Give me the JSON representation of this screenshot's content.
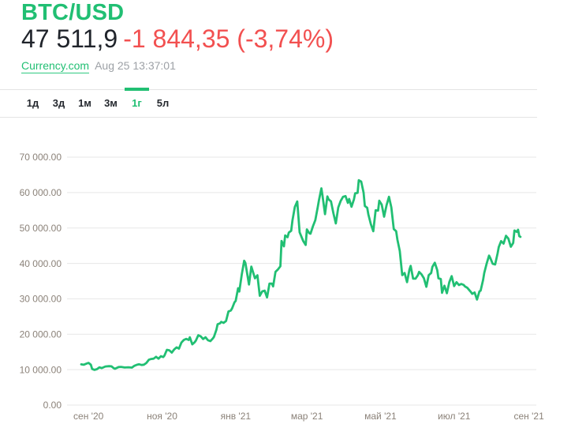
{
  "header": {
    "title": "BTC/USD",
    "price": "47 511,9",
    "change": "-1 844,35 (-3,74%)",
    "source_link": "Currency.com",
    "timestamp": "Aug 25 13:37:01"
  },
  "tabs": {
    "items": [
      {
        "label": "1д",
        "active": false
      },
      {
        "label": "3д",
        "active": false
      },
      {
        "label": "1м",
        "active": false
      },
      {
        "label": "3м",
        "active": false
      },
      {
        "label": "1г",
        "active": true
      },
      {
        "label": "5л",
        "active": false
      }
    ]
  },
  "colors": {
    "brand_green": "#21bf73",
    "change_red": "#f25050",
    "price_dark": "#20242b",
    "axis_text": "#8b8279",
    "grid_line": "#e7e7e7",
    "timestamp_gray": "#9da1a6"
  },
  "chart_data": {
    "type": "line",
    "title": "BTC/USD 1-year price",
    "series_name": "BTC/USD",
    "line_color": "#21bf73",
    "grid": true,
    "ylim": [
      0,
      70000
    ],
    "y_tick_values": [
      70000,
      60000,
      50000,
      40000,
      30000,
      20000,
      10000,
      0
    ],
    "y_tick_labels": [
      "70 000.00",
      "60 000.00",
      "50 000.00",
      "40 000.00",
      "30 000.00",
      "20 000.00",
      "10 000.00",
      "0.00"
    ],
    "x_tick_labels": [
      "сен '20",
      "ноя '20",
      "янв '21",
      "мар '21",
      "май '21",
      "июл '21",
      "сен '21"
    ],
    "x_tick_days": [
      6,
      67,
      128,
      187,
      248,
      309,
      371
    ],
    "x_range_days": [
      0,
      364
    ],
    "points_day_priceUSD": [
      [
        0,
        11500
      ],
      [
        2,
        11400
      ],
      [
        4,
        11650
      ],
      [
        6,
        11920
      ],
      [
        8,
        11400
      ],
      [
        9,
        10200
      ],
      [
        11,
        9950
      ],
      [
        13,
        10150
      ],
      [
        15,
        10650
      ],
      [
        17,
        10450
      ],
      [
        20,
        10900
      ],
      [
        23,
        11000
      ],
      [
        25,
        10950
      ],
      [
        27,
        10400
      ],
      [
        28,
        10250
      ],
      [
        31,
        10750
      ],
      [
        33,
        10800
      ],
      [
        36,
        10620
      ],
      [
        39,
        10680
      ],
      [
        42,
        10600
      ],
      [
        44,
        11080
      ],
      [
        46,
        11380
      ],
      [
        48,
        11530
      ],
      [
        50,
        11320
      ],
      [
        52,
        11420
      ],
      [
        54,
        11900
      ],
      [
        56,
        12800
      ],
      [
        58,
        13020
      ],
      [
        60,
        13100
      ],
      [
        62,
        13650
      ],
      [
        64,
        13100
      ],
      [
        66,
        13800
      ],
      [
        68,
        13560
      ],
      [
        69,
        14020
      ],
      [
        71,
        15600
      ],
      [
        73,
        15480
      ],
      [
        75,
        14830
      ],
      [
        77,
        15700
      ],
      [
        79,
        16300
      ],
      [
        81,
        15950
      ],
      [
        83,
        17650
      ],
      [
        85,
        18400
      ],
      [
        87,
        18700
      ],
      [
        89,
        18400
      ],
      [
        90,
        19150
      ],
      [
        92,
        17150
      ],
      [
        94,
        17750
      ],
      [
        95,
        18200
      ],
      [
        97,
        19700
      ],
      [
        99,
        19420
      ],
      [
        101,
        18650
      ],
      [
        103,
        19150
      ],
      [
        105,
        18320
      ],
      [
        107,
        18050
      ],
      [
        109,
        18800
      ],
      [
        110,
        19250
      ],
      [
        112,
        21300
      ],
      [
        113,
        22800
      ],
      [
        115,
        23100
      ],
      [
        116,
        23500
      ],
      [
        118,
        23200
      ],
      [
        120,
        23750
      ],
      [
        122,
        26450
      ],
      [
        124,
        26700
      ],
      [
        125,
        27300
      ],
      [
        127,
        29000
      ],
      [
        128,
        29400
      ],
      [
        130,
        33000
      ],
      [
        131,
        32050
      ],
      [
        133,
        36800
      ],
      [
        135,
        40750
      ],
      [
        136,
        40150
      ],
      [
        137,
        38200
      ],
      [
        139,
        34050
      ],
      [
        141,
        39100
      ],
      [
        143,
        36850
      ],
      [
        144,
        35800
      ],
      [
        146,
        36650
      ],
      [
        148,
        30850
      ],
      [
        150,
        32100
      ],
      [
        152,
        32300
      ],
      [
        154,
        30400
      ],
      [
        156,
        34300
      ],
      [
        158,
        34300
      ],
      [
        159,
        33500
      ],
      [
        161,
        37600
      ],
      [
        163,
        38300
      ],
      [
        165,
        39200
      ],
      [
        166,
        46350
      ],
      [
        168,
        44800
      ],
      [
        169,
        47900
      ],
      [
        171,
        47400
      ],
      [
        172,
        48700
      ],
      [
        174,
        49200
      ],
      [
        175,
        52100
      ],
      [
        177,
        55900
      ],
      [
        179,
        57500
      ],
      [
        181,
        48800
      ],
      [
        183,
        47100
      ],
      [
        184,
        46300
      ],
      [
        186,
        45200
      ],
      [
        187,
        49600
      ],
      [
        189,
        48500
      ],
      [
        190,
        48400
      ],
      [
        192,
        50500
      ],
      [
        194,
        52200
      ],
      [
        196,
        55900
      ],
      [
        197,
        57800
      ],
      [
        199,
        61200
      ],
      [
        200,
        59000
      ],
      [
        202,
        53900
      ],
      [
        204,
        58900
      ],
      [
        205,
        58100
      ],
      [
        207,
        57500
      ],
      [
        209,
        54100
      ],
      [
        211,
        51300
      ],
      [
        213,
        55800
      ],
      [
        215,
        57600
      ],
      [
        217,
        58800
      ],
      [
        219,
        59000
      ],
      [
        221,
        57100
      ],
      [
        222,
        58200
      ],
      [
        224,
        56000
      ],
      [
        226,
        58100
      ],
      [
        227,
        59800
      ],
      [
        229,
        59900
      ],
      [
        230,
        63500
      ],
      [
        232,
        63100
      ],
      [
        234,
        60000
      ],
      [
        235,
        56200
      ],
      [
        237,
        55700
      ],
      [
        238,
        53800
      ],
      [
        240,
        51100
      ],
      [
        242,
        49100
      ],
      [
        244,
        55000
      ],
      [
        246,
        54900
      ],
      [
        247,
        57700
      ],
      [
        249,
        56600
      ],
      [
        251,
        53200
      ],
      [
        253,
        56400
      ],
      [
        255,
        58800
      ],
      [
        257,
        55800
      ],
      [
        259,
        49700
      ],
      [
        261,
        49100
      ],
      [
        262,
        46700
      ],
      [
        264,
        43500
      ],
      [
        266,
        36700
      ],
      [
        268,
        37300
      ],
      [
        270,
        34700
      ],
      [
        272,
        38300
      ],
      [
        273,
        39300
      ],
      [
        275,
        35700
      ],
      [
        277,
        35700
      ],
      [
        279,
        36700
      ],
      [
        280,
        37600
      ],
      [
        282,
        36900
      ],
      [
        284,
        35800
      ],
      [
        286,
        33400
      ],
      [
        288,
        36700
      ],
      [
        290,
        37300
      ],
      [
        291,
        39000
      ],
      [
        293,
        40200
      ],
      [
        295,
        38100
      ],
      [
        296,
        35800
      ],
      [
        298,
        35600
      ],
      [
        299,
        31700
      ],
      [
        301,
        33700
      ],
      [
        303,
        31600
      ],
      [
        305,
        34700
      ],
      [
        307,
        36400
      ],
      [
        309,
        33600
      ],
      [
        311,
        34700
      ],
      [
        313,
        33900
      ],
      [
        315,
        34200
      ],
      [
        317,
        33900
      ],
      [
        318,
        33500
      ],
      [
        320,
        33100
      ],
      [
        321,
        32700
      ],
      [
        323,
        31900
      ],
      [
        324,
        31400
      ],
      [
        326,
        31800
      ],
      [
        328,
        29800
      ],
      [
        330,
        32100
      ],
      [
        331,
        32300
      ],
      [
        333,
        35300
      ],
      [
        334,
        37300
      ],
      [
        336,
        40000
      ],
      [
        338,
        42200
      ],
      [
        339,
        41500
      ],
      [
        341,
        39900
      ],
      [
        343,
        39700
      ],
      [
        345,
        42800
      ],
      [
        346,
        44600
      ],
      [
        348,
        46300
      ],
      [
        350,
        45600
      ],
      [
        352,
        47800
      ],
      [
        354,
        47000
      ],
      [
        356,
        44700
      ],
      [
        358,
        45800
      ],
      [
        359,
        49300
      ],
      [
        361,
        48900
      ],
      [
        362,
        49500
      ],
      [
        363,
        47700
      ],
      [
        364,
        47512
      ]
    ]
  }
}
